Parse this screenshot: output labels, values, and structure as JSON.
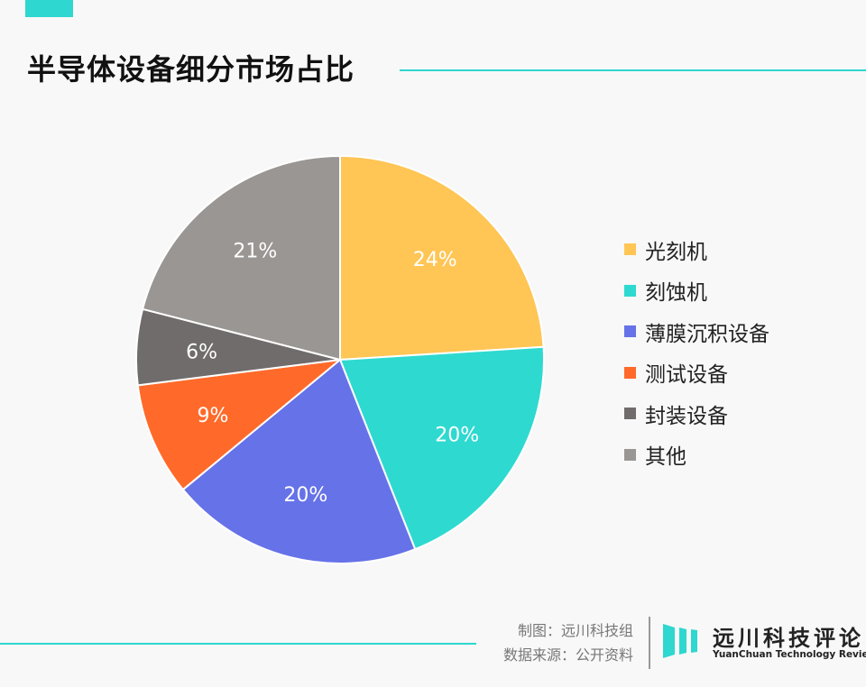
{
  "title": "半导体设备细分市场占比",
  "chart_data": {
    "type": "pie",
    "title": "半导体设备细分市场占比",
    "start": "top, clockwise",
    "legend_position": "right",
    "slices": [
      {
        "label": "光刻机",
        "value": 24,
        "display": "24%",
        "color": "#ffc555"
      },
      {
        "label": "刻蚀机",
        "value": 20,
        "display": "20%",
        "color": "#2ed9d0"
      },
      {
        "label": "薄膜沉积设备",
        "value": 20,
        "display": "20%",
        "color": "#6672e8"
      },
      {
        "label": "测试设备",
        "value": 9,
        "display": "9%",
        "color": "#ff6a2a"
      },
      {
        "label": "封装设备",
        "value": 6,
        "display": "6%",
        "color": "#716c6c"
      },
      {
        "label": "其他",
        "value": 21,
        "display": "21%",
        "color": "#9a9694"
      }
    ]
  },
  "footer": {
    "credit_maker": "制图：远川科技组",
    "credit_source": "数据来源：公开资料",
    "logo_cn": "远川科技评论",
    "logo_en": "YuanChuan Technology Review"
  }
}
